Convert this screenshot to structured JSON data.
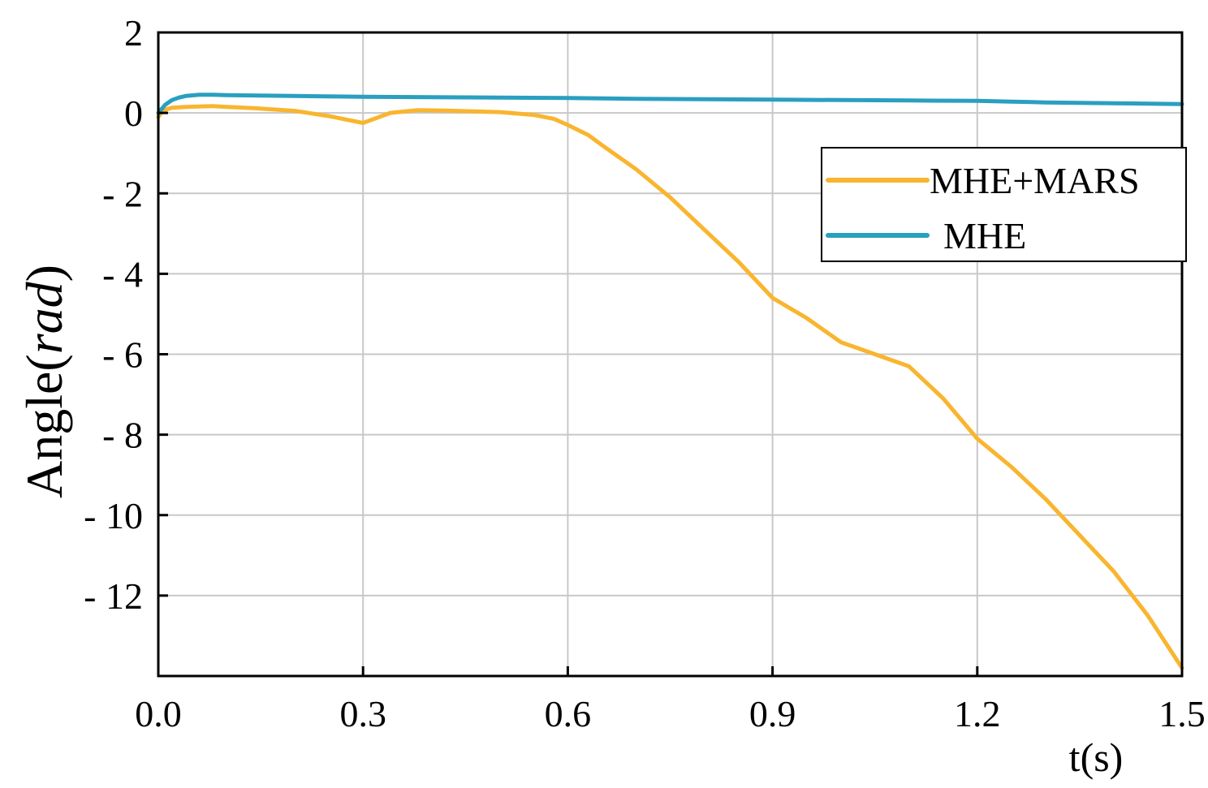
{
  "chart_data": {
    "type": "line",
    "title": "",
    "xlabel": "t(s)",
    "ylabel": {
      "prefix": "Angle(",
      "italic": "rad",
      "suffix": ")"
    },
    "xlim": [
      0,
      1.5
    ],
    "ylim": [
      -14,
      2
    ],
    "x_ticks": [
      0,
      0.3,
      0.6,
      0.9,
      1.2,
      1.5
    ],
    "x_tick_labels": [
      "0.0",
      "0.3",
      "0.6",
      "0.9",
      "1.2",
      "1.5"
    ],
    "y_ticks": [
      2,
      0,
      -2,
      -4,
      -6,
      -8,
      -10,
      -12
    ],
    "y_tick_labels": [
      "2",
      "0",
      "- 2",
      "- 4",
      "- 6",
      "- 8",
      "- 10",
      "- 12"
    ],
    "grid": true,
    "legend_position": "upper-right",
    "series": [
      {
        "name": "MHE+MARS",
        "color": "#F9B52F",
        "x": [
          0,
          0.005,
          0.01,
          0.02,
          0.04,
          0.06,
          0.08,
          0.1,
          0.14,
          0.2,
          0.25,
          0.3,
          0.34,
          0.38,
          0.42,
          0.5,
          0.55,
          0.58,
          0.6,
          0.63,
          0.65,
          0.7,
          0.75,
          0.8,
          0.85,
          0.9,
          0.95,
          1.0,
          1.05,
          1.1,
          1.15,
          1.2,
          1.25,
          1.3,
          1.35,
          1.4,
          1.45,
          1.5
        ],
        "values": [
          -0.1,
          0.02,
          0.08,
          0.13,
          0.15,
          0.16,
          0.17,
          0.15,
          0.12,
          0.05,
          -0.08,
          -0.25,
          0.0,
          0.07,
          0.06,
          0.02,
          -0.05,
          -0.15,
          -0.3,
          -0.55,
          -0.8,
          -1.4,
          -2.1,
          -2.9,
          -3.7,
          -4.6,
          -5.1,
          -5.7,
          -6.0,
          -6.3,
          -7.1,
          -8.1,
          -8.8,
          -9.6,
          -10.5,
          -11.4,
          -12.5,
          -13.8
        ]
      },
      {
        "name": "MHE",
        "color": "#2A9FC0",
        "x": [
          0,
          0.005,
          0.01,
          0.02,
          0.03,
          0.04,
          0.06,
          0.08,
          0.1,
          0.2,
          0.3,
          0.5,
          0.6,
          0.7,
          0.8,
          0.9,
          1.0,
          1.1,
          1.2,
          1.25,
          1.3,
          1.4,
          1.5
        ],
        "values": [
          0.0,
          0.1,
          0.2,
          0.32,
          0.38,
          0.42,
          0.45,
          0.45,
          0.44,
          0.42,
          0.4,
          0.38,
          0.37,
          0.35,
          0.34,
          0.33,
          0.32,
          0.31,
          0.3,
          0.28,
          0.26,
          0.24,
          0.22
        ]
      }
    ]
  }
}
